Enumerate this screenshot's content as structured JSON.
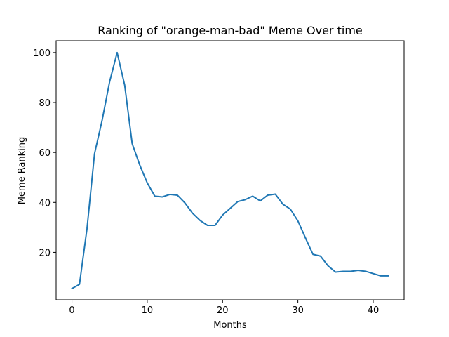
{
  "chart_data": {
    "type": "line",
    "title": "Ranking of \"orange-man-bad\" Meme Over time",
    "xlabel": "Months",
    "ylabel": "Meme Ranking",
    "xlim": [
      -2.1,
      44.1
    ],
    "ylim": [
      1.0,
      104.75
    ],
    "xticks": [
      0,
      10,
      20,
      30,
      40
    ],
    "yticks": [
      20,
      40,
      60,
      80,
      100
    ],
    "grid": false,
    "series": [
      {
        "color": "#1f77b4",
        "x": [
          0,
          1,
          2,
          3,
          4,
          5,
          6,
          7,
          8,
          9,
          10,
          11,
          12,
          13,
          14,
          15,
          16,
          17,
          18,
          19,
          20,
          21,
          22,
          23,
          24,
          25,
          26,
          27,
          28,
          29,
          30,
          31,
          32,
          33,
          34,
          35,
          36,
          37,
          38,
          39,
          40,
          41,
          42
        ],
        "values": [
          5.5,
          7.2,
          29.5,
          59.5,
          72.8,
          88.3,
          100,
          87,
          63.5,
          55,
          47.8,
          42.5,
          42.2,
          43.2,
          42.9,
          39.8,
          35.7,
          32.8,
          30.8,
          30.8,
          34.9,
          37.6,
          40.3,
          41.1,
          42.5,
          40.6,
          42.9,
          43.3,
          39.3,
          37.3,
          32.6,
          25.8,
          19.2,
          18.5,
          14.6,
          12.1,
          12.4,
          12.4,
          12.8,
          12.4,
          11.5,
          10.6,
          10.6
        ]
      }
    ]
  }
}
